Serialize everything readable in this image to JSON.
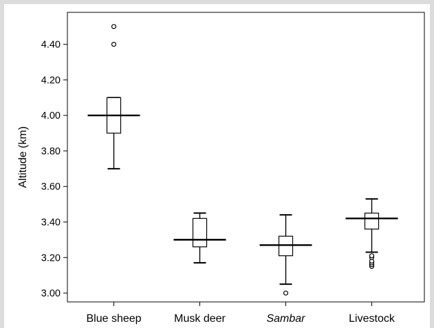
{
  "chart_data": {
    "type": "box",
    "title": "",
    "xlabel": "",
    "ylabel": "Altitude (km)",
    "ylim": [
      2.95,
      4.58
    ],
    "yticks": [
      "3.00",
      "3.20",
      "3.40",
      "3.60",
      "3.80",
      "4.00",
      "4.20",
      "4.40"
    ],
    "grid": false,
    "categories": [
      {
        "label": "Blue sheep",
        "italic": false
      },
      {
        "label": "Musk deer",
        "italic": false
      },
      {
        "label": "Sambar",
        "italic": true
      },
      {
        "label": "Livestock",
        "italic": false
      }
    ],
    "boxes": [
      {
        "whisker_low": 3.7,
        "q1": 3.9,
        "median": 4.0,
        "q3": 4.1,
        "whisker_high": 4.1,
        "outliers": [
          4.4,
          4.5
        ]
      },
      {
        "whisker_low": 3.17,
        "q1": 3.26,
        "median": 3.3,
        "q3": 3.42,
        "whisker_high": 3.45,
        "outliers": []
      },
      {
        "whisker_low": 3.05,
        "q1": 3.21,
        "median": 3.27,
        "q3": 3.32,
        "whisker_high": 3.44,
        "outliers": [
          3.0
        ]
      },
      {
        "whisker_low": 3.23,
        "q1": 3.36,
        "median": 3.42,
        "q3": 3.45,
        "whisker_high": 3.53,
        "outliers": [
          3.15,
          3.16,
          3.17,
          3.18,
          3.2,
          3.21
        ]
      }
    ]
  }
}
